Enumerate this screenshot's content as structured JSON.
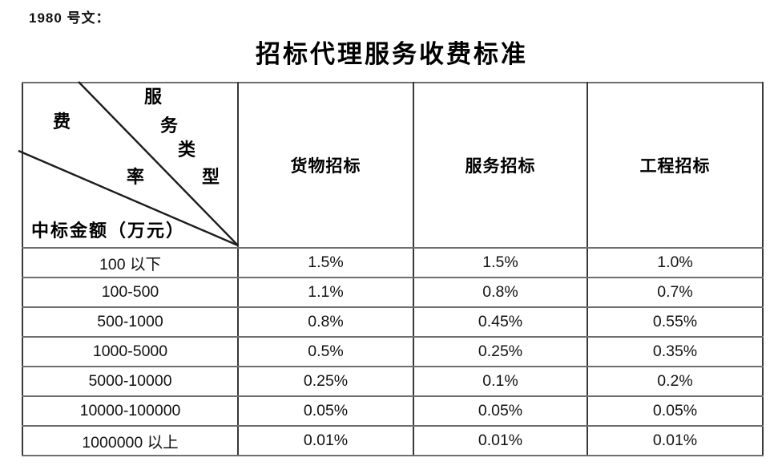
{
  "doc_ref": "1980 号文：",
  "title": "招标代理服务收费标准",
  "table": {
    "corner": {
      "fee_chars": [
        "费",
        "率"
      ],
      "type_chars": [
        "服",
        "务",
        "类",
        "型"
      ],
      "amount_label": "中标金额（万元）"
    },
    "columns": [
      "货物招标",
      "服务招标",
      "工程招标"
    ],
    "rows": [
      {
        "range": "100 以下",
        "rates": [
          "1.5%",
          "1.5%",
          "1.0%"
        ]
      },
      {
        "range": "100-500",
        "rates": [
          "1.1%",
          "0.8%",
          "0.7%"
        ]
      },
      {
        "range": "500-1000",
        "rates": [
          "0.8%",
          "0.45%",
          "0.55%"
        ]
      },
      {
        "range": "1000-5000",
        "rates": [
          "0.5%",
          "0.25%",
          "0.35%"
        ]
      },
      {
        "range": "5000-10000",
        "rates": [
          "0.25%",
          "0.1%",
          "0.2%"
        ]
      },
      {
        "range": "10000-100000",
        "rates": [
          "0.05%",
          "0.05%",
          "0.05%"
        ]
      },
      {
        "range": "1000000 以上",
        "rates": [
          "0.01%",
          "0.01%",
          "0.01%"
        ]
      }
    ]
  },
  "colors": {
    "border_vertical": "#383838",
    "border_horizontal": "#6e6e6e",
    "diagonal_line": "#1c1c1c",
    "text": "#000000"
  }
}
